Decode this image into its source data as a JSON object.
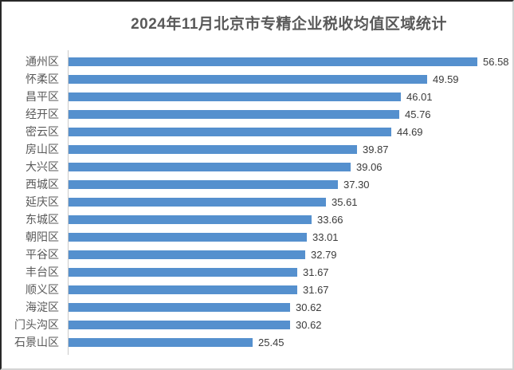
{
  "title": "2024年11月北京市专精企业税收均值区域统计",
  "colors": {
    "bar": "#5590CE",
    "title_text": "#595959",
    "category_text": "#595959",
    "value_text": "#3a3a3a",
    "axis_line": "#c9c9c9",
    "background": "#ffffff"
  },
  "chart_data": {
    "type": "bar",
    "orientation": "horizontal",
    "title": "2024年11月北京市专精企业税收均值区域统计",
    "categories": [
      "通州区",
      "怀柔区",
      "昌平区",
      "经开区",
      "密云区",
      "房山区",
      "大兴区",
      "西城区",
      "延庆区",
      "东城区",
      "朝阳区",
      "平谷区",
      "丰台区",
      "顺义区",
      "海淀区",
      "门头沟区",
      "石景山区"
    ],
    "values": [
      56.58,
      49.59,
      46.01,
      45.76,
      44.69,
      39.87,
      39.06,
      37.3,
      35.61,
      33.66,
      33.01,
      32.79,
      31.67,
      31.67,
      30.62,
      30.62,
      25.45
    ],
    "value_labels": [
      "56.58",
      "49.59",
      "46.01",
      "45.76",
      "44.69",
      "39.87",
      "39.06",
      "37.30",
      "35.61",
      "33.66",
      "33.01",
      "32.79",
      "31.67",
      "31.67",
      "30.62",
      "30.62",
      "25.45"
    ],
    "xlim": [
      0,
      62
    ],
    "grid": false,
    "legend": false,
    "value_axis_visible": false,
    "data_labels": "outside-end"
  }
}
